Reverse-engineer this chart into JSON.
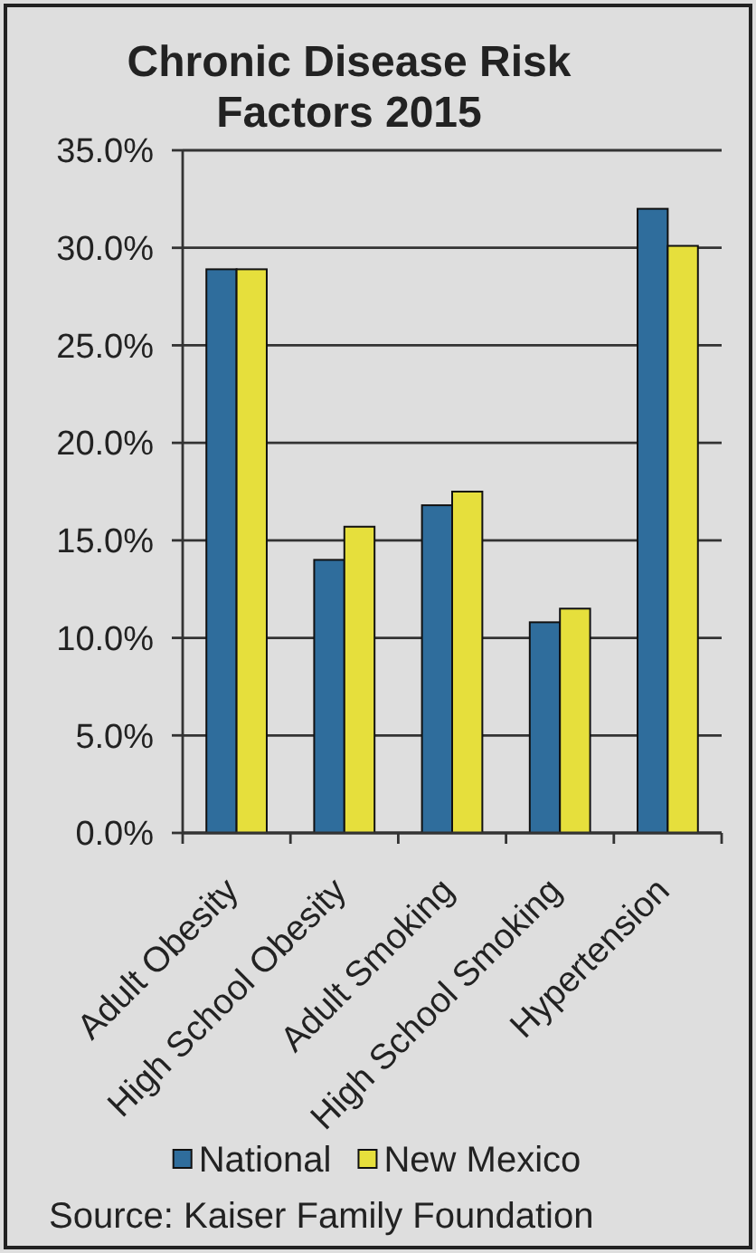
{
  "chart_data": {
    "type": "bar",
    "title": "Chronic Disease Risk Factors 2015",
    "categories": [
      "Adult Obesity",
      "High School Obesity",
      "Adult Smoking",
      "High School Smoking",
      "Hypertension"
    ],
    "series": [
      {
        "name": "National",
        "color": "#2f6d9c",
        "values": [
          28.9,
          14.0,
          16.8,
          10.8,
          32.0
        ]
      },
      {
        "name": "New Mexico",
        "color": "#e6df3c",
        "values": [
          28.9,
          15.7,
          17.5,
          11.5,
          30.1
        ]
      }
    ],
    "ylim": [
      0,
      35
    ],
    "yticks": [
      {
        "value": 0,
        "label": "0.0%"
      },
      {
        "value": 5,
        "label": "5.0%"
      },
      {
        "value": 10,
        "label": "10.0%"
      },
      {
        "value": 15,
        "label": "15.0%"
      },
      {
        "value": 20,
        "label": "20.0%"
      },
      {
        "value": 25,
        "label": "25.0%"
      },
      {
        "value": 30,
        "label": "30.0%"
      },
      {
        "value": 35,
        "label": "35.0%"
      }
    ],
    "grid": "y",
    "legend": "bottom",
    "annotations": [
      "Source: Kaiser Family Foundation"
    ]
  }
}
